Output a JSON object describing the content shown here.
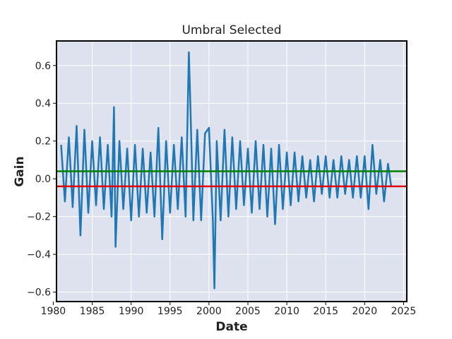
{
  "chart_data": {
    "type": "line",
    "title": "Umbral Selected",
    "xlabel": "Date",
    "ylabel": "Gain",
    "xlim": [
      "1980-06-01",
      "2025-06-01"
    ],
    "ylim": [
      -0.65,
      0.73
    ],
    "x_ticks": [
      "1980",
      "1985",
      "1990",
      "1995",
      "2000",
      "2005",
      "2010",
      "2015",
      "2020",
      "2025"
    ],
    "y_ticks": [
      "-0.6",
      "-0.4",
      "-0.2",
      "0.0",
      "0.2",
      "0.4",
      "0.6"
    ],
    "grid": true,
    "background_color": "#dde2ee",
    "series": [
      {
        "color": "#1f77b4",
        "x": [
          "1981-01-01",
          "1981-07-01",
          "1982-01-01",
          "1982-07-01",
          "1983-01-01",
          "1983-07-01",
          "1984-01-01",
          "1984-07-01",
          "1985-01-01",
          "1985-07-01",
          "1986-01-01",
          "1986-07-01",
          "1987-01-01",
          "1987-07-01",
          "1987-10-19",
          "1988-01-01",
          "1988-07-01",
          "1989-01-01",
          "1989-07-01",
          "1990-01-01",
          "1990-07-01",
          "1991-01-01",
          "1991-07-01",
          "1992-01-01",
          "1992-07-01",
          "1993-01-01",
          "1993-07-01",
          "1994-01-01",
          "1994-07-01",
          "1995-01-01",
          "1995-07-01",
          "1996-01-01",
          "1996-07-01",
          "1997-01-01",
          "1997-06-01",
          "1997-08-01",
          "1998-01-01",
          "1998-07-01",
          "1999-01-01",
          "1999-07-01",
          "2000-01-01",
          "2000-07-01",
          "2000-09-15",
          "2001-01-01",
          "2001-07-01",
          "2002-01-01",
          "2002-07-01",
          "2003-01-01",
          "2003-07-01",
          "2004-01-01",
          "2004-07-01",
          "2005-01-01",
          "2005-07-01",
          "2006-01-01",
          "2006-07-01",
          "2007-01-01",
          "2007-07-01",
          "2008-01-01",
          "2008-07-01",
          "2009-01-01",
          "2009-07-01",
          "2010-01-01",
          "2010-07-01",
          "2011-01-01",
          "2011-07-01",
          "2012-01-01",
          "2012-07-01",
          "2013-01-01",
          "2013-07-01",
          "2014-01-01",
          "2014-07-01",
          "2015-01-01",
          "2015-07-01",
          "2016-01-01",
          "2016-07-01",
          "2017-01-01",
          "2017-07-01",
          "2018-01-01",
          "2018-07-01",
          "2019-01-01",
          "2019-07-01",
          "2020-01-01",
          "2020-07-01",
          "2021-01-01",
          "2021-07-01",
          "2022-01-01",
          "2022-07-01",
          "2023-01-01",
          "2023-06-01"
        ],
        "values": [
          0.18,
          -0.12,
          0.22,
          -0.15,
          0.28,
          -0.3,
          0.26,
          -0.18,
          0.2,
          -0.14,
          0.22,
          -0.16,
          0.18,
          -0.2,
          0.38,
          -0.36,
          0.2,
          -0.16,
          0.16,
          -0.22,
          0.18,
          -0.2,
          0.16,
          -0.18,
          0.14,
          -0.2,
          0.27,
          -0.32,
          0.2,
          -0.18,
          0.18,
          -0.16,
          0.22,
          -0.2,
          0.67,
          0.44,
          -0.22,
          0.26,
          -0.22,
          0.24,
          0.27,
          -0.22,
          -0.58,
          0.2,
          -0.22,
          0.26,
          -0.2,
          0.22,
          -0.16,
          0.2,
          -0.14,
          0.16,
          -0.18,
          0.2,
          -0.16,
          0.18,
          -0.2,
          0.16,
          -0.24,
          0.18,
          -0.16,
          0.14,
          -0.14,
          0.14,
          -0.12,
          0.12,
          -0.1,
          0.1,
          -0.12,
          0.12,
          -0.08,
          0.12,
          -0.1,
          0.1,
          -0.1,
          0.12,
          -0.08,
          0.1,
          -0.1,
          0.12,
          -0.1,
          0.12,
          -0.16,
          0.18,
          -0.08,
          0.1,
          -0.12,
          0.08,
          -0.04
        ]
      }
    ],
    "hlines": [
      {
        "y": 0.04,
        "color": "#007f00"
      },
      {
        "y": -0.04,
        "color": "#e00000"
      }
    ]
  }
}
